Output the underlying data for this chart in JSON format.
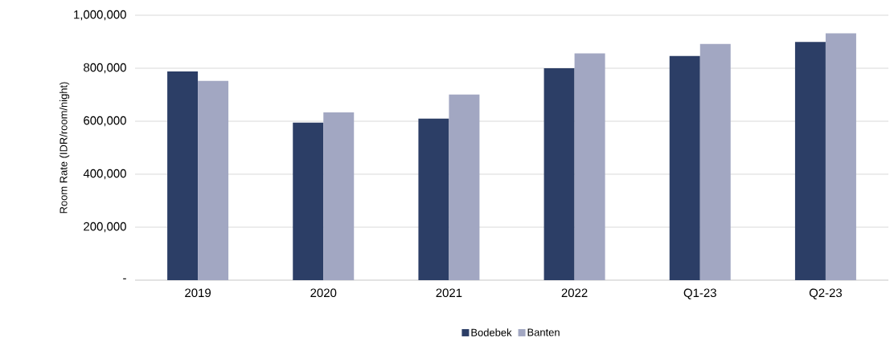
{
  "chart_data": {
    "type": "bar",
    "ylabel": "Room Rate (IDR/room/night)",
    "categories": [
      "2019",
      "2020",
      "2021",
      "2022",
      "Q1-23",
      "Q2-23"
    ],
    "series": [
      {
        "name": "Bodebek",
        "color": "#2c3e66",
        "values": [
          788000,
          595000,
          610000,
          800000,
          846000,
          899000
        ]
      },
      {
        "name": "Banten",
        "color": "#a2a7c2",
        "values": [
          752000,
          633000,
          701000,
          856000,
          892000,
          932000
        ]
      }
    ],
    "ylim": [
      0,
      1000000
    ],
    "yticks": [
      {
        "value": 0,
        "label": "-"
      },
      {
        "value": 200000,
        "label": "200,000"
      },
      {
        "value": 400000,
        "label": "400,000"
      },
      {
        "value": 600000,
        "label": "600,000"
      },
      {
        "value": 800000,
        "label": "800,000"
      },
      {
        "value": 1000000,
        "label": "1,000,000"
      }
    ],
    "grid": "y",
    "legend": "bottom"
  }
}
